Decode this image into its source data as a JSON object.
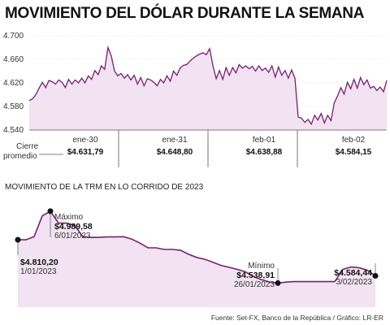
{
  "title": "MOVIMIENTO DEL DÓLAR DURANTE LA SEMANA",
  "subtitle": "MOVIMIENTO DE LA TRM EN LO CORRIDO DE 2023",
  "source": "Fuente: Set-FX, Banco de la República / Gráfico: LR-ER",
  "colors": {
    "line": "#7a1e72",
    "fill": "#f1e3f1",
    "axis": "#555555",
    "grid": "#d0d0d0",
    "marker": "#111111"
  },
  "chart_data": [
    {
      "type": "area",
      "ylim": [
        4540,
        4700
      ],
      "y_ticks": [
        "4.700",
        "4.660",
        "4.620",
        "4.580",
        "4.540"
      ],
      "y_tick_values": [
        4700,
        4660,
        4620,
        4580,
        4540
      ],
      "row_label_line1": "Cierre",
      "row_label_line2": "promedio",
      "days": [
        {
          "label": "ene-30",
          "close": "$4.631,79"
        },
        {
          "label": "ene-31",
          "close": "$4.648,80"
        },
        {
          "label": "feb-01",
          "close": "$4.638,88"
        },
        {
          "label": "feb-02",
          "close": "$4.584,15"
        }
      ],
      "values": [
        4590,
        4593,
        4600,
        4611,
        4621,
        4612,
        4624,
        4622,
        4618,
        4625,
        4621,
        4612,
        4626,
        4618,
        4625,
        4620,
        4628,
        4620,
        4632,
        4626,
        4641,
        4634,
        4649,
        4643,
        4680,
        4666,
        4640,
        4632,
        4636,
        4628,
        4634,
        4625,
        4633,
        4618,
        4629,
        4615,
        4627,
        4625,
        4621,
        4615,
        4626,
        4620,
        4632,
        4623,
        4640,
        4633,
        4645,
        4650,
        4651,
        4657,
        4662,
        4666,
        4669,
        4671,
        4668,
        4678,
        4649,
        4627,
        4641,
        4626,
        4646,
        4633,
        4646,
        4637,
        4651,
        4645,
        4649,
        4644,
        4648,
        4640,
        4649,
        4641,
        4645,
        4638,
        4649,
        4630,
        4647,
        4633,
        4641,
        4628,
        4642,
        4628,
        4562,
        4560,
        4553,
        4558,
        4550,
        4565,
        4557,
        4568,
        4552,
        4565,
        4556,
        4586,
        4598,
        4612,
        4601,
        4621,
        4610,
        4626,
        4611,
        4629,
        4617,
        4625,
        4611,
        4614,
        4607,
        4613,
        4605,
        4624
      ]
    },
    {
      "type": "line",
      "ylim": [
        4480,
        5040
      ],
      "values": [
        4810.2,
        4810.2,
        4830,
        4960,
        4989.58,
        4915,
        4915,
        4900,
        4830,
        4825,
        4825,
        4828,
        4828,
        4830,
        4815,
        4790,
        4760,
        4760,
        4750,
        4750,
        4745,
        4720,
        4700,
        4688,
        4670,
        4650,
        4638,
        4625,
        4610,
        4580,
        4560,
        4545,
        4538.91,
        4545,
        4548,
        4548,
        4548,
        4548,
        4548,
        4548,
        4625,
        4640,
        4635,
        4620,
        4584.44
      ],
      "highlights": [
        {
          "kind": "start",
          "index": 0,
          "value": "$4.810,20",
          "date": "1/01/2023",
          "label": ""
        },
        {
          "kind": "max",
          "index": 4,
          "value": "$4.989,58",
          "date": "6/01/2023",
          "label": "Máximo"
        },
        {
          "kind": "min",
          "index": 32,
          "value": "$4.538,91",
          "date": "26/01/2023",
          "label": "Mínimo"
        },
        {
          "kind": "end",
          "index": 44,
          "value": "$4.584,44",
          "date": "3/02/2023",
          "label": ""
        }
      ]
    }
  ]
}
